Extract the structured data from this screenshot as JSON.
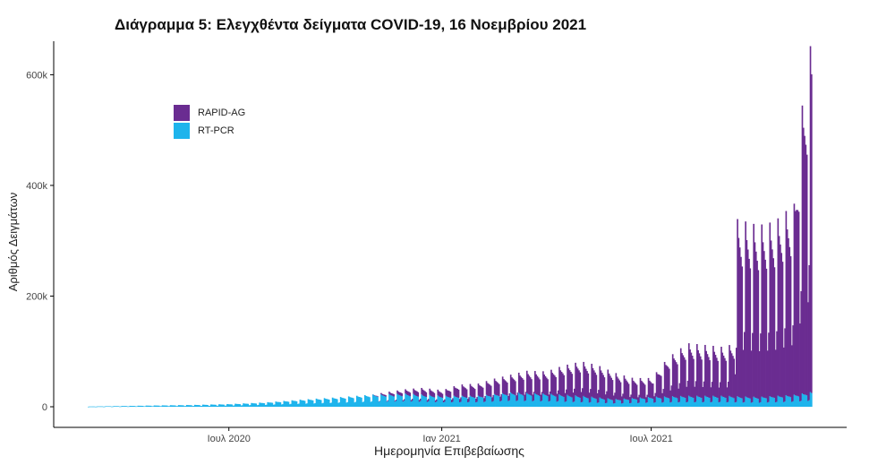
{
  "chart_data": {
    "type": "bar",
    "stacked": true,
    "title": "Διάγραμμα 5: Ελεγχθέντα δείγματα COVID-19, 16 Νοεμβρίου 2021",
    "xlabel": "Ημερομηνία Επιβεβαίωσης",
    "ylabel": "Αριθμός Δειγμάτων",
    "x_range": [
      "2020-03-01",
      "2021-11-16"
    ],
    "ylim": [
      0,
      680000
    ],
    "y_ticks": [
      {
        "value": 0,
        "label": "0"
      },
      {
        "value": 200000,
        "label": "200k"
      },
      {
        "value": 400000,
        "label": "400k"
      },
      {
        "value": 600000,
        "label": "600k"
      }
    ],
    "x_ticks": [
      {
        "date": "2020-07-01",
        "label": "Ιουλ 2020"
      },
      {
        "date": "2021-01-01",
        "label": "Ιαν 2021"
      },
      {
        "date": "2021-07-01",
        "label": "Ιουλ 2021"
      }
    ],
    "legend_position": "top-left",
    "grid": false,
    "series": [
      {
        "name": "RAPID-AG",
        "color": "#6a2c91",
        "weekly_profile": [
          0.4,
          1.0,
          0.9,
          0.85,
          0.8,
          0.75,
          0.3
        ],
        "points": [
          [
            "2020-11-01",
            0
          ],
          [
            "2020-11-15",
            4000
          ],
          [
            "2020-12-01",
            8000
          ],
          [
            "2020-12-15",
            12000
          ],
          [
            "2021-01-01",
            10000
          ],
          [
            "2021-01-15",
            20000
          ],
          [
            "2021-02-01",
            22000
          ],
          [
            "2021-02-15",
            28000
          ],
          [
            "2021-03-01",
            32000
          ],
          [
            "2021-03-15",
            40000
          ],
          [
            "2021-04-01",
            40000
          ],
          [
            "2021-04-15",
            52000
          ],
          [
            "2021-05-01",
            62000
          ],
          [
            "2021-05-15",
            58000
          ],
          [
            "2021-06-01",
            46000
          ],
          [
            "2021-06-15",
            36000
          ],
          [
            "2021-07-01",
            34000
          ],
          [
            "2021-07-15",
            70000
          ],
          [
            "2021-08-01",
            95000
          ],
          [
            "2021-08-15",
            92000
          ],
          [
            "2021-09-01",
            88000
          ],
          [
            "2021-09-10",
            95000
          ],
          [
            "2021-09-13",
            320000
          ],
          [
            "2021-10-01",
            310000
          ],
          [
            "2021-10-15",
            315000
          ],
          [
            "2021-11-01",
            345000
          ],
          [
            "2021-11-08",
            520000
          ],
          [
            "2021-11-16",
            640000
          ]
        ]
      },
      {
        "name": "RT-PCR",
        "color": "#1eb4ec",
        "weekly_profile": [
          0.45,
          1.0,
          0.92,
          0.88,
          0.85,
          0.8,
          0.4
        ],
        "points": [
          [
            "2020-03-01",
            400
          ],
          [
            "2020-04-15",
            2000
          ],
          [
            "2020-06-01",
            3500
          ],
          [
            "2020-07-01",
            5000
          ],
          [
            "2020-08-01",
            8000
          ],
          [
            "2020-09-01",
            13000
          ],
          [
            "2020-10-01",
            17000
          ],
          [
            "2020-11-01",
            22000
          ],
          [
            "2020-12-01",
            24000
          ],
          [
            "2021-01-01",
            20000
          ],
          [
            "2021-02-01",
            20000
          ],
          [
            "2021-03-01",
            26000
          ],
          [
            "2021-04-01",
            24000
          ],
          [
            "2021-05-01",
            20000
          ],
          [
            "2021-06-01",
            14000
          ],
          [
            "2021-07-01",
            18000
          ],
          [
            "2021-08-01",
            20000
          ],
          [
            "2021-09-01",
            20000
          ],
          [
            "2021-10-01",
            18000
          ],
          [
            "2021-11-01",
            22000
          ],
          [
            "2021-11-16",
            27000
          ]
        ]
      }
    ]
  }
}
